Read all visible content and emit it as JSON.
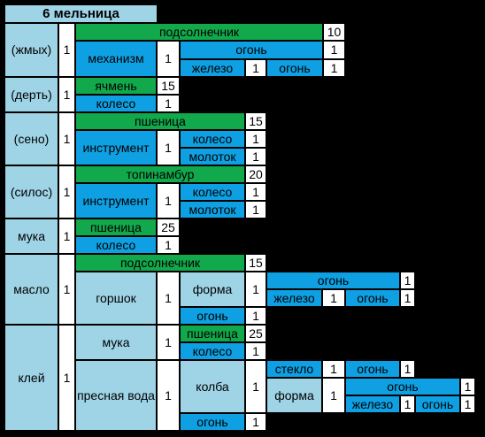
{
  "title": "6 мельница",
  "colors": {
    "background": "#000000",
    "row_label": "#9fd4e6",
    "quantity": "#ffffff",
    "ingredient_green": "#12a84c",
    "ingredient_blue": "#0ea0e2"
  },
  "rows": {
    "zhmyh": {
      "label": "(жмых)",
      "qty": "1",
      "sunflower": "подсолнечник",
      "sunflower_qty": "10",
      "mechanism": "механизм",
      "mechanism_qty": "1",
      "fire": "огонь",
      "fire_qty": "1",
      "iron": "железо",
      "iron_qty": "1",
      "fire2": "огонь",
      "fire2_qty": "1"
    },
    "dert": {
      "label": "(дерть)",
      "qty": "1",
      "barley": "ячмень",
      "barley_qty": "15",
      "wheel": "колесо",
      "wheel_qty": "1"
    },
    "seno": {
      "label": "(сено)",
      "qty": "1",
      "wheat": "пшеница",
      "wheat_qty": "15",
      "tool": "инструмент",
      "tool_qty": "1",
      "wheel": "колесо",
      "wheel_qty": "1",
      "hammer": "молоток",
      "hammer_qty": "1"
    },
    "silos": {
      "label": "(силос)",
      "qty": "1",
      "topinambur": "топинамбур",
      "topinambur_qty": "20",
      "tool": "инструмент",
      "tool_qty": "1",
      "wheel": "колесо",
      "wheel_qty": "1",
      "hammer": "молоток",
      "hammer_qty": "1"
    },
    "muka": {
      "label": "мука",
      "qty": "1",
      "wheat": "пшеница",
      "wheat_qty": "25",
      "wheel": "колесо",
      "wheel_qty": "1"
    },
    "maslo": {
      "label": "масло",
      "qty": "1",
      "sunflower": "подсолнечник",
      "sunflower_qty": "15",
      "pot": "горшок",
      "pot_qty": "1",
      "form": "форма",
      "form_qty": "1",
      "fire": "огонь",
      "fire_qty": "1",
      "iron": "железо",
      "iron_qty": "1",
      "fire2": "огонь",
      "fire2_qty": "1",
      "fire3": "огонь",
      "fire3_qty": "1"
    },
    "klei": {
      "label": "клей",
      "qty": "1",
      "flour": "мука",
      "flour_qty": "1",
      "wheat": "пшеница",
      "wheat_qty": "25",
      "wheel": "колесо",
      "wheel_qty": "1",
      "water": "пресная вода",
      "water_qty": "1",
      "flask": "колба",
      "flask_qty": "1",
      "glass": "стекло",
      "glass_qty": "1",
      "fire": "огонь",
      "fire_qty": "1",
      "form": "форма",
      "form_qty": "1",
      "fire2": "огонь",
      "fire2_qty": "1",
      "iron": "железо",
      "iron_qty": "1",
      "fire3": "огонь",
      "fire3_qty": "1",
      "fire4": "огонь",
      "fire4_qty": "1"
    }
  }
}
